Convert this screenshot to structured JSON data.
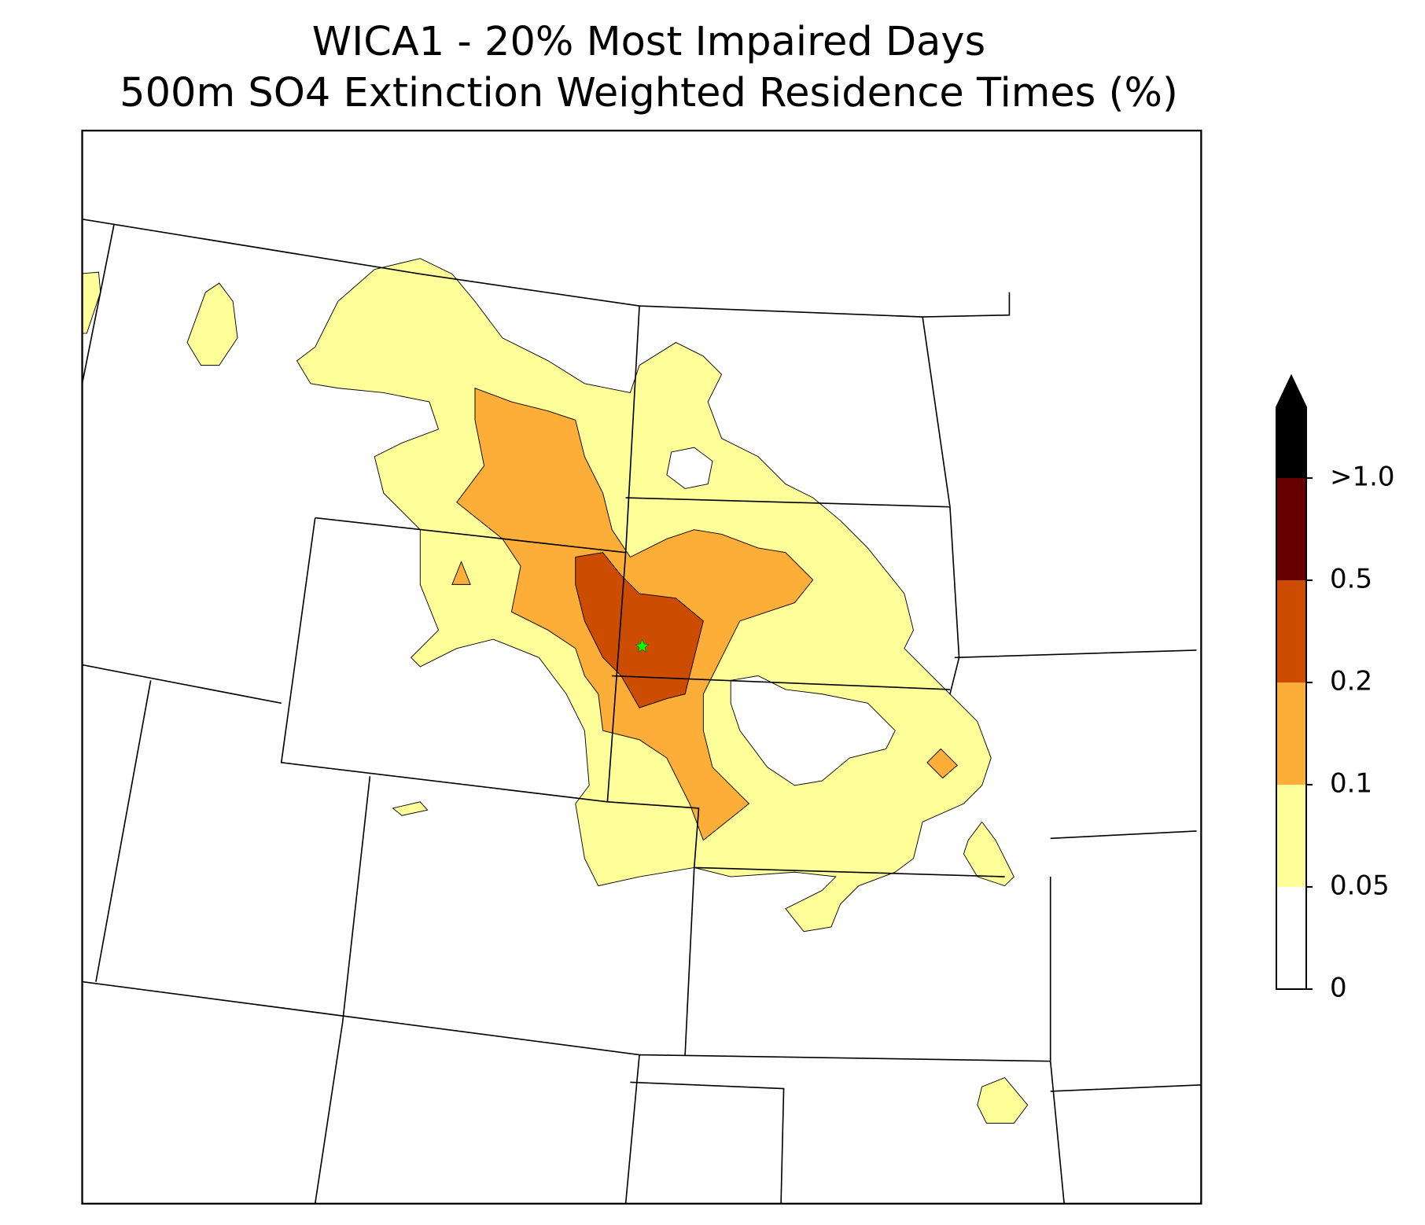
{
  "title": [
    "WICA1 - 20% Most Impaired Days",
    "500m SO4 Extinction Weighted Residence Times (%)"
  ],
  "colorbar": {
    "ticks": [
      0,
      0.05,
      0.1,
      0.2,
      0.5,
      {
        "value": 1.0,
        "label": ">1.0"
      }
    ],
    "colors": [
      "#ffffff",
      "#ffff99",
      "#fdae38",
      "#cc4c02",
      "#660000",
      "#000000"
    ],
    "extend": "max"
  }
}
